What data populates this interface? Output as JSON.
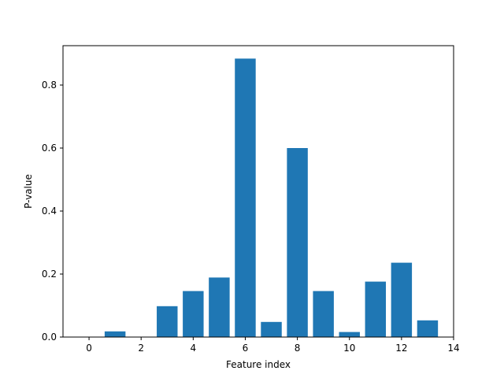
{
  "chart_data": {
    "type": "bar",
    "xlabel": "Feature index",
    "ylabel": "P-value",
    "xlim": [
      -1.0,
      14.0
    ],
    "ylim": [
      0,
      0.925
    ],
    "grid": false,
    "bar_color": "#1f77b4",
    "x": [
      0,
      1,
      2,
      3,
      4,
      5,
      6,
      7,
      8,
      9,
      10,
      11,
      12,
      13
    ],
    "values": [
      0.0,
      0.018,
      0.0,
      0.098,
      0.146,
      0.189,
      0.884,
      0.048,
      0.6,
      0.146,
      0.016,
      0.176,
      0.236,
      0.053
    ],
    "xticks": [
      0,
      2,
      4,
      6,
      8,
      10,
      12,
      14
    ],
    "xtick_labels": [
      "0",
      "2",
      "4",
      "6",
      "8",
      "10",
      "12",
      "14"
    ],
    "yticks": [
      0.0,
      0.2,
      0.4,
      0.6,
      0.8
    ],
    "ytick_labels": [
      "0.0",
      "0.2",
      "0.4",
      "0.6",
      "0.8"
    ]
  }
}
